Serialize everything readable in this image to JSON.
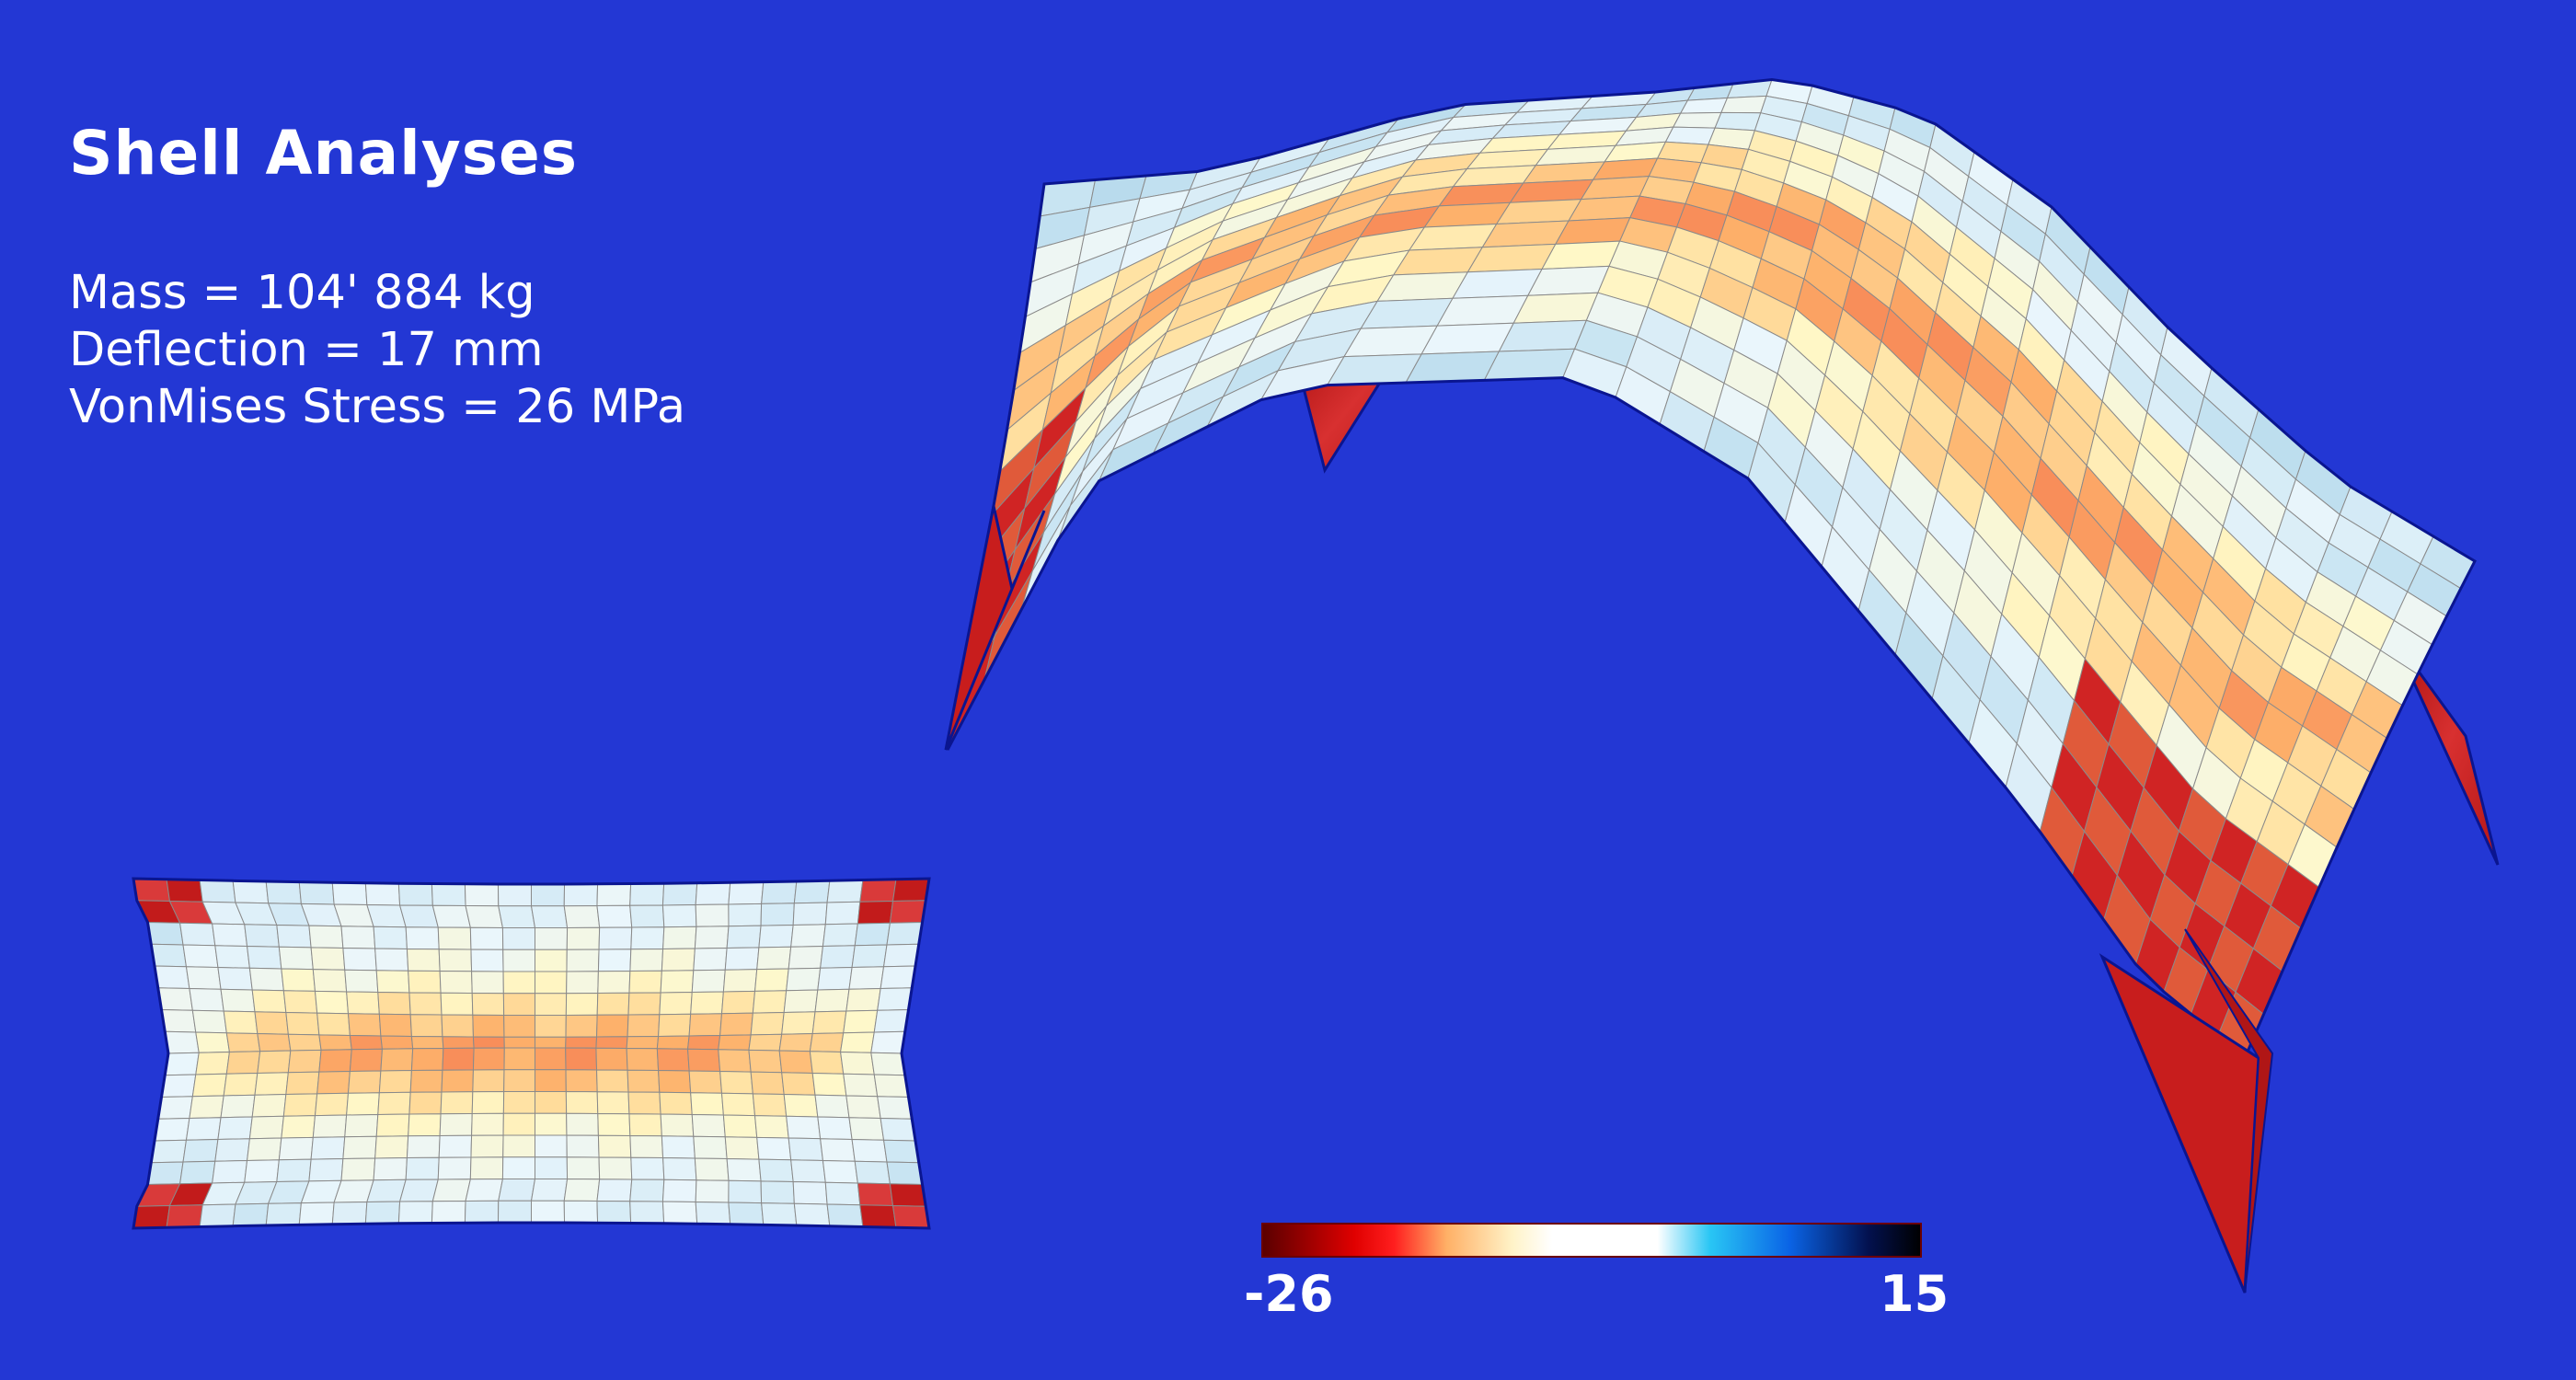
{
  "title": "Shell Analyses",
  "stats": [
    "Mass = 104' 884 kg",
    "Deflection = 17 mm",
    "VonMises Stress = 26 MPa"
  ],
  "legend": {
    "min": "-26",
    "max": "15"
  },
  "colors": {
    "background": "#2337d4",
    "outline": "#0a1590",
    "mesh_line": "#7d7d7d",
    "scale": [
      "#5a0000",
      "#e00000",
      "#ff1e1e",
      "#ffb066",
      "#ffffff",
      "#ffffff",
      "#29c6f4",
      "#0a64e6",
      "#03114f",
      "#000000"
    ]
  }
}
